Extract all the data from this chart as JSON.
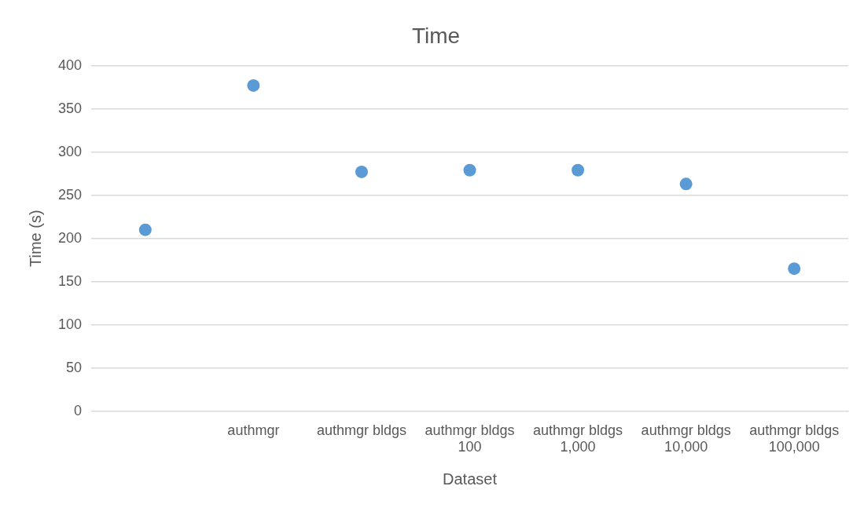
{
  "chart_data": {
    "type": "scatter",
    "title": "Time",
    "xlabel": "Dataset",
    "ylabel": "Time (s)",
    "categories": [
      null,
      "authmgr",
      "authmgr bldgs",
      "authmgr bldgs 100",
      "authmgr bldgs 1,000",
      "authmgr bldgs 10,000",
      "authmgr bldgs 100,000"
    ],
    "series": [
      {
        "color": "#5b9bd5",
        "values": [
          210,
          377,
          277,
          279,
          279,
          263,
          165
        ]
      }
    ],
    "ylim": [
      0,
      400
    ],
    "yticks": [
      0,
      50,
      100,
      150,
      200,
      250,
      300,
      350,
      400
    ],
    "grid": "y",
    "marker": "circle",
    "legend": false
  }
}
